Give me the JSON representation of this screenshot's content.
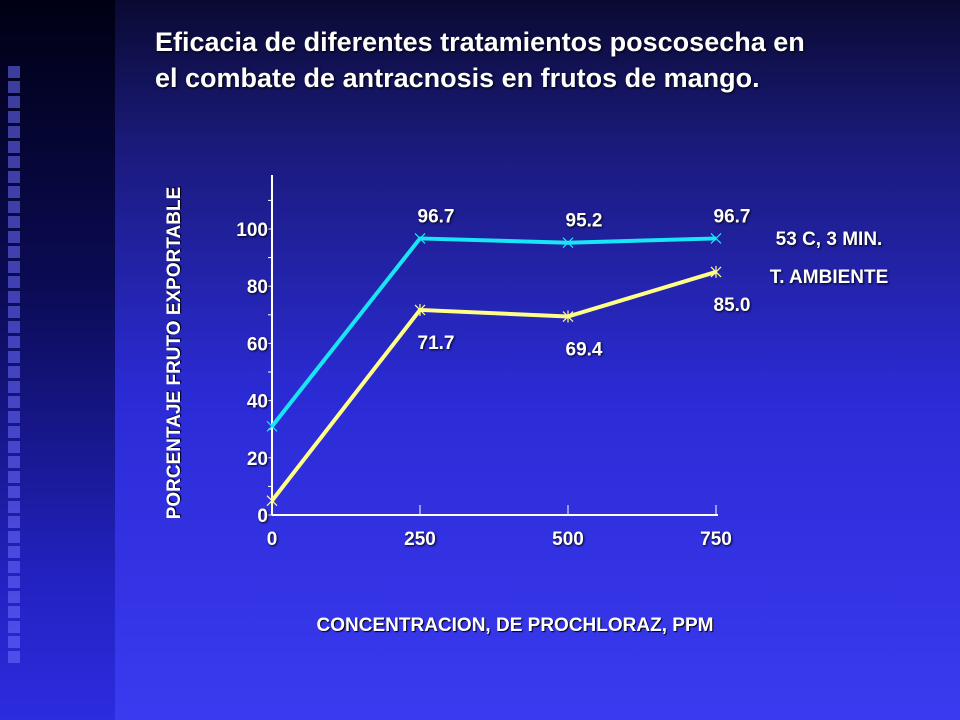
{
  "slide": {
    "title_line1": "Eficacia de diferentes tratamientos poscosecha en",
    "title_line2": "el combate de antracnosis en frutos de mango."
  },
  "chart_data": {
    "type": "line",
    "title": "",
    "xlabel": "CONCENTRACION, DE PROCHLORAZ, PPM",
    "ylabel": "PORCENTAJE FRUTO EXPORTABLE",
    "x": [
      0,
      250,
      500,
      750
    ],
    "x_tick_labels": [
      "0",
      "250",
      "500",
      "750"
    ],
    "y_tick_labels": [
      "0",
      "20",
      "40",
      "60",
      "80",
      "100"
    ],
    "ylim": [
      0,
      120
    ],
    "grid": false,
    "legend_placement": "right",
    "series": [
      {
        "name": "53 C, 3 MIN.",
        "color": "#19e6f5",
        "marker": "x",
        "values": [
          31,
          96.7,
          95.2,
          96.7
        ],
        "data_labels": [
          "",
          "96.7",
          "95.2",
          "96.7"
        ]
      },
      {
        "name": "T. AMBIENTE",
        "color": "#ffff88",
        "marker": "asterisk",
        "values": [
          5,
          71.7,
          69.4,
          85.0
        ],
        "data_labels": [
          "",
          "71.7",
          "69.4",
          "85.0"
        ]
      }
    ]
  }
}
